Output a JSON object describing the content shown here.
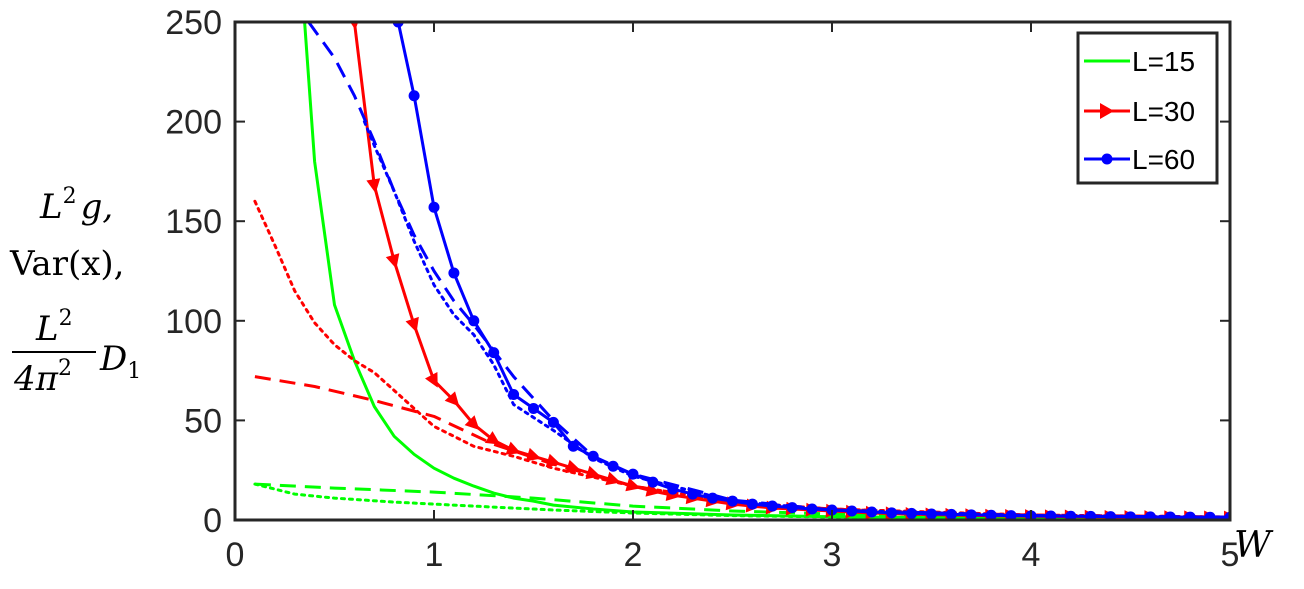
{
  "chart_data": {
    "type": "line",
    "xlim": [
      0,
      5
    ],
    "ylim": [
      0,
      250
    ],
    "xticks": [
      "0",
      "1",
      "2",
      "3",
      "4",
      "5"
    ],
    "yticks": [
      "0",
      "50",
      "100",
      "150",
      "200",
      "250"
    ],
    "xlabel": "W",
    "ylabel": {
      "line1_base": "L",
      "line1_sup": "2",
      "line1_rest": "g,",
      "line2": "Var(x),",
      "line3_num_base": "L",
      "line3_num_sup": "2",
      "line3_den_base": "4π",
      "line3_den_sup": "2",
      "line3_rest_base": "D",
      "line3_rest_sub": "1"
    },
    "legend_position": "top-right",
    "legend": [
      "L=15",
      "L=30",
      "L=60"
    ],
    "colors": {
      "L=15": "#00ff00",
      "L=30": "#ff0000",
      "L=60": "#0000ff"
    },
    "series": [
      {
        "name": "L=15",
        "style": "solid",
        "marker": "none",
        "color": "#00ff00",
        "x": [
          0.35,
          0.4,
          0.5,
          0.6,
          0.7,
          0.8,
          0.9,
          1.0,
          1.1,
          1.2,
          1.3,
          1.4,
          1.5,
          1.6,
          1.8,
          2.0,
          2.5,
          3.0,
          3.5,
          4.0,
          4.5,
          5.0
        ],
        "y": [
          250,
          180,
          108,
          80,
          57,
          42,
          33,
          26,
          21,
          17,
          13.5,
          11,
          9.5,
          7.5,
          5.5,
          4,
          2.5,
          1.6,
          1.2,
          0.9,
          0.7,
          0.6
        ]
      },
      {
        "name": "",
        "style": "dashed",
        "marker": "none",
        "color": "#00ff00",
        "x": [
          0.1,
          0.5,
          1.0,
          1.5,
          2.0,
          2.5,
          3.0,
          3.5,
          4.0,
          4.5,
          5.0
        ],
        "y": [
          18,
          16,
          14,
          11,
          7,
          4.5,
          3,
          2,
          1.5,
          1.1,
          0.9
        ]
      },
      {
        "name": "",
        "style": "dotted",
        "marker": "none",
        "color": "#00ff00",
        "x": [
          0.1,
          0.3,
          0.5,
          0.8,
          1.0,
          1.3,
          1.6,
          2.0,
          2.5,
          3.0,
          4.0,
          5.0
        ],
        "y": [
          18,
          13,
          11,
          9,
          8,
          6.5,
          5,
          3.5,
          2.2,
          1.5,
          0.9,
          0.7
        ]
      },
      {
        "name": "L=30",
        "style": "solid",
        "marker": "triangle",
        "color": "#ff0000",
        "x": [
          0.6,
          0.7,
          0.8,
          0.9,
          1.0,
          1.1,
          1.2,
          1.3,
          1.4,
          1.5,
          1.6,
          1.7,
          1.8,
          1.9,
          2.0,
          2.1,
          2.2,
          2.3,
          2.4,
          2.5,
          2.6,
          2.7,
          2.8,
          2.9,
          3.0,
          3.1,
          3.2,
          3.3,
          3.4,
          3.5,
          3.6,
          3.7,
          3.8,
          3.9,
          4.0,
          4.1,
          4.2,
          4.3,
          4.4,
          4.5,
          4.6,
          4.7,
          4.8,
          4.9,
          5.0
        ],
        "y": [
          250,
          168,
          130,
          98,
          70,
          60,
          48,
          40,
          35,
          32,
          29,
          26,
          23,
          20,
          17,
          14.5,
          12.5,
          11,
          9.5,
          8,
          7,
          6,
          5.5,
          5,
          4.5,
          4,
          3.5,
          3.2,
          2.9,
          2.7,
          2.5,
          2.3,
          2.1,
          2,
          1.9,
          1.8,
          1.7,
          1.6,
          1.5,
          1.45,
          1.4,
          1.35,
          1.3,
          1.25,
          1.2
        ]
      },
      {
        "name": "",
        "style": "dashed",
        "marker": "none",
        "color": "#ff0000",
        "x": [
          0.1,
          0.4,
          0.7,
          1.0,
          1.3,
          1.6,
          2.0,
          2.5,
          3.0,
          3.5,
          4.0,
          5.0
        ],
        "y": [
          72,
          67,
          60,
          52,
          38,
          28,
          17,
          9,
          5.5,
          3.5,
          2.5,
          1.5
        ]
      },
      {
        "name": "",
        "style": "dotted",
        "marker": "none",
        "color": "#ff0000",
        "x": [
          0.1,
          0.2,
          0.3,
          0.4,
          0.5,
          0.6,
          0.7,
          0.8,
          0.9,
          1.0,
          1.1,
          1.2,
          1.4,
          1.6,
          2.0,
          2.5,
          3.0,
          4.0,
          5.0
        ],
        "y": [
          160,
          138,
          115,
          99,
          88,
          80,
          74,
          65,
          56,
          47,
          42,
          37,
          32,
          26,
          17,
          9,
          5.5,
          2.5,
          1.5
        ]
      },
      {
        "name": "L=60",
        "style": "solid",
        "marker": "circle",
        "color": "#0000ff",
        "x": [
          0.82,
          0.9,
          1.0,
          1.1,
          1.2,
          1.3,
          1.4,
          1.5,
          1.6,
          1.7,
          1.8,
          1.9,
          2.0,
          2.1,
          2.2,
          2.3,
          2.4,
          2.5,
          2.6,
          2.7,
          2.8,
          2.9,
          3.0,
          3.1,
          3.2,
          3.3,
          3.4,
          3.5,
          3.6,
          3.7,
          3.8,
          3.9,
          4.0,
          4.1,
          4.2,
          4.3,
          4.4,
          4.5,
          4.6,
          4.7,
          4.8,
          4.9,
          5.0
        ],
        "y": [
          250,
          213,
          157,
          124,
          100,
          84,
          63,
          56,
          49,
          37,
          32,
          27,
          23,
          19,
          15.5,
          13,
          11,
          9.5,
          8,
          7,
          6.2,
          5.5,
          5,
          4.5,
          4,
          3.6,
          3.3,
          3,
          2.8,
          2.6,
          2.4,
          2.2,
          2.1,
          2,
          1.9,
          1.8,
          1.7,
          1.6,
          1.55,
          1.5,
          1.45,
          1.4,
          1.35
        ]
      },
      {
        "name": "",
        "style": "dashed",
        "marker": "none",
        "color": "#0000ff",
        "x": [
          0.37,
          0.5,
          0.6,
          0.7,
          0.8,
          0.9,
          1.0,
          1.1,
          1.2,
          1.4,
          1.6,
          1.8,
          2.0,
          2.5,
          3.0,
          4.0,
          5.0
        ],
        "y": [
          250,
          232,
          213,
          190,
          165,
          143,
          125,
          110,
          98,
          72,
          50,
          32,
          23,
          10,
          5,
          2.2,
          1.4
        ]
      },
      {
        "name": "",
        "style": "dotted",
        "marker": "none",
        "color": "#0000ff",
        "x": [
          0.65,
          0.7,
          0.8,
          0.9,
          1.0,
          1.1,
          1.2,
          1.3,
          1.4,
          1.6,
          1.8,
          2.0,
          2.5,
          3.0,
          4.0,
          5.0
        ],
        "y": [
          200,
          188,
          165,
          140,
          118,
          103,
          93,
          78,
          58,
          45,
          31,
          22,
          9.5,
          5,
          2.2,
          1.4
        ]
      }
    ]
  }
}
